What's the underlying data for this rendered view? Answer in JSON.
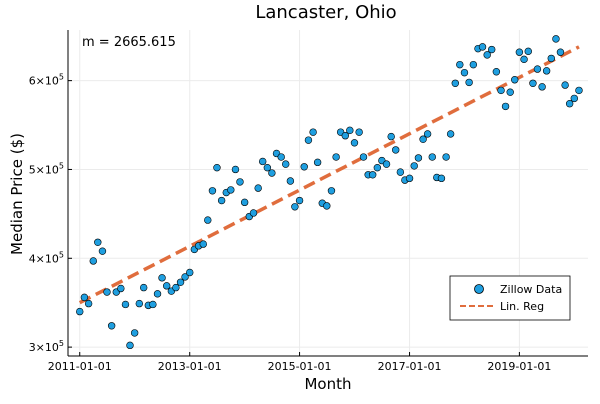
{
  "chart_data": {
    "type": "scatter",
    "title": "Lancaster, Ohio",
    "xlabel": "Month",
    "ylabel": "Median Price ($)",
    "annotation": "m = 2665.615",
    "x_ticks": [
      "2011-01-01",
      "2013-01-01",
      "2015-01-01",
      "2017-01-01",
      "2019-01-01"
    ],
    "y_ticks": [
      {
        "value": 300000,
        "mantissa": "3×10",
        "exp": "5"
      },
      {
        "value": 400000,
        "mantissa": "4×10",
        "exp": "5"
      },
      {
        "value": 500000,
        "mantissa": "5×10",
        "exp": "5"
      },
      {
        "value": 600000,
        "mantissa": "6×10",
        "exp": "5"
      }
    ],
    "xlim": [
      "2010-10-15",
      "2020-04-01"
    ],
    "ylim": [
      290000,
      657000
    ],
    "grid": true,
    "legend_position": "bottom-right",
    "series": [
      {
        "name": "Zillow Data",
        "kind": "scatter",
        "color": "#1f9fe0",
        "points": [
          [
            "2011-01-01",
            340000
          ],
          [
            "2011-02-01",
            356000
          ],
          [
            "2011-03-01",
            349000
          ],
          [
            "2011-04-01",
            397000
          ],
          [
            "2011-05-01",
            418000
          ],
          [
            "2011-06-01",
            408000
          ],
          [
            "2011-07-01",
            362000
          ],
          [
            "2011-08-01",
            324000
          ],
          [
            "2011-09-01",
            362000
          ],
          [
            "2011-10-01",
            366000
          ],
          [
            "2011-11-01",
            348000
          ],
          [
            "2011-12-01",
            302000
          ],
          [
            "2012-01-01",
            316000
          ],
          [
            "2012-02-01",
            349000
          ],
          [
            "2012-03-01",
            367000
          ],
          [
            "2012-04-01",
            347000
          ],
          [
            "2012-05-01",
            348000
          ],
          [
            "2012-06-01",
            360000
          ],
          [
            "2012-07-01",
            378000
          ],
          [
            "2012-08-01",
            369000
          ],
          [
            "2012-09-01",
            363000
          ],
          [
            "2012-10-01",
            367000
          ],
          [
            "2012-11-01",
            373000
          ],
          [
            "2012-12-01",
            379000
          ],
          [
            "2013-01-01",
            384000
          ],
          [
            "2013-02-01",
            410000
          ],
          [
            "2013-03-01",
            414000
          ],
          [
            "2013-04-01",
            416000
          ],
          [
            "2013-05-01",
            443000
          ],
          [
            "2013-06-01",
            476000
          ],
          [
            "2013-07-01",
            502000
          ],
          [
            "2013-08-01",
            465000
          ],
          [
            "2013-09-01",
            474000
          ],
          [
            "2013-10-01",
            477000
          ],
          [
            "2013-11-01",
            500000
          ],
          [
            "2013-12-01",
            486000
          ],
          [
            "2014-01-01",
            463000
          ],
          [
            "2014-02-01",
            447000
          ],
          [
            "2014-03-01",
            451000
          ],
          [
            "2014-04-01",
            479000
          ],
          [
            "2014-05-01",
            509000
          ],
          [
            "2014-06-01",
            502000
          ],
          [
            "2014-07-01",
            496000
          ],
          [
            "2014-08-01",
            518000
          ],
          [
            "2014-09-01",
            514000
          ],
          [
            "2014-10-01",
            506000
          ],
          [
            "2014-11-01",
            487000
          ],
          [
            "2014-12-01",
            458000
          ],
          [
            "2015-01-01",
            465000
          ],
          [
            "2015-02-01",
            503000
          ],
          [
            "2015-03-01",
            533000
          ],
          [
            "2015-04-01",
            542000
          ],
          [
            "2015-05-01",
            508000
          ],
          [
            "2015-06-01",
            462000
          ],
          [
            "2015-07-01",
            459000
          ],
          [
            "2015-08-01",
            476000
          ],
          [
            "2015-09-01",
            514000
          ],
          [
            "2015-10-01",
            542000
          ],
          [
            "2015-11-01",
            538000
          ],
          [
            "2015-12-01",
            544000
          ],
          [
            "2016-01-01",
            530000
          ],
          [
            "2016-02-01",
            542000
          ],
          [
            "2016-03-01",
            514000
          ],
          [
            "2016-04-01",
            494000
          ],
          [
            "2016-05-01",
            494000
          ],
          [
            "2016-06-01",
            502000
          ],
          [
            "2016-07-01",
            510000
          ],
          [
            "2016-08-01",
            506000
          ],
          [
            "2016-09-01",
            537000
          ],
          [
            "2016-10-01",
            522000
          ],
          [
            "2016-11-01",
            497000
          ],
          [
            "2016-12-01",
            488000
          ],
          [
            "2017-01-01",
            490000
          ],
          [
            "2017-02-01",
            504000
          ],
          [
            "2017-03-01",
            513000
          ],
          [
            "2017-04-01",
            534000
          ],
          [
            "2017-05-01",
            540000
          ],
          [
            "2017-06-01",
            514000
          ],
          [
            "2017-07-01",
            491000
          ],
          [
            "2017-08-01",
            490000
          ],
          [
            "2017-09-01",
            514000
          ],
          [
            "2017-10-01",
            540000
          ],
          [
            "2017-11-01",
            597000
          ],
          [
            "2017-12-01",
            618000
          ],
          [
            "2018-01-01",
            609000
          ],
          [
            "2018-02-01",
            598000
          ],
          [
            "2018-03-01",
            618000
          ],
          [
            "2018-04-01",
            636000
          ],
          [
            "2018-05-01",
            638000
          ],
          [
            "2018-06-01",
            629000
          ],
          [
            "2018-07-01",
            635000
          ],
          [
            "2018-08-01",
            610000
          ],
          [
            "2018-09-01",
            589000
          ],
          [
            "2018-10-01",
            571000
          ],
          [
            "2018-11-01",
            587000
          ],
          [
            "2018-12-01",
            601000
          ],
          [
            "2019-01-01",
            632000
          ],
          [
            "2019-02-01",
            624000
          ],
          [
            "2019-03-01",
            633000
          ],
          [
            "2019-04-01",
            597000
          ],
          [
            "2019-05-01",
            613000
          ],
          [
            "2019-06-01",
            593000
          ],
          [
            "2019-07-01",
            611000
          ],
          [
            "2019-08-01",
            625000
          ],
          [
            "2019-09-01",
            647000
          ],
          [
            "2019-10-01",
            632000
          ],
          [
            "2019-11-01",
            595000
          ],
          [
            "2019-12-01",
            574000
          ],
          [
            "2020-01-01",
            580000
          ],
          [
            "2020-02-01",
            589000
          ]
        ]
      },
      {
        "name": "Lin. Reg",
        "kind": "line",
        "color": "#e06d3d",
        "points": [
          [
            "2011-01-01",
            350000
          ],
          [
            "2020-02-01",
            638000
          ]
        ]
      }
    ]
  }
}
